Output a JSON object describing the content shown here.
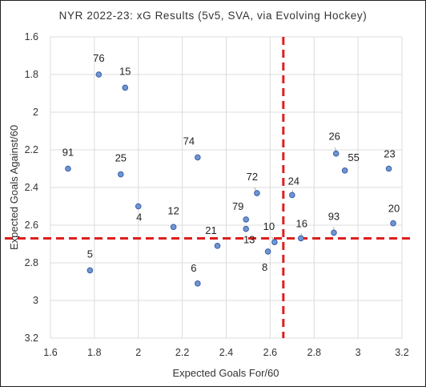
{
  "chart_data": {
    "type": "scatter",
    "title": "NYR 2022-23: xG Results (5v5, SVA, via Evolving Hockey)",
    "xlabel": "Expected Goals For/60",
    "ylabel": "Expected Goals Against/60",
    "xlim": [
      1.6,
      3.2
    ],
    "ylim": [
      1.6,
      3.2
    ],
    "y_inverted": true,
    "x_ticks": [
      "1.6",
      "1.8",
      "2",
      "2.2",
      "2.4",
      "2.6",
      "2.8",
      "3",
      "3.2"
    ],
    "y_ticks": [
      "1.6",
      "1.8",
      "2",
      "2.2",
      "2.4",
      "2.6",
      "2.8",
      "3",
      "3.2"
    ],
    "grid": true,
    "reference_lines": [
      {
        "axis": "x",
        "value": 2.66,
        "color": "#e01e1e",
        "style": "dashed"
      },
      {
        "axis": "y",
        "value": 2.67,
        "color": "#e01e1e",
        "style": "dashed"
      }
    ],
    "points": [
      {
        "label": "76",
        "x": 1.82,
        "y": 1.8
      },
      {
        "label": "15",
        "x": 1.94,
        "y": 1.87
      },
      {
        "label": "91",
        "x": 1.68,
        "y": 2.3
      },
      {
        "label": "25",
        "x": 1.92,
        "y": 2.33
      },
      {
        "label": "4",
        "x": 2.0,
        "y": 2.5
      },
      {
        "label": "74",
        "x": 2.27,
        "y": 2.24
      },
      {
        "label": "12",
        "x": 2.16,
        "y": 2.61
      },
      {
        "label": "5",
        "x": 1.78,
        "y": 2.84
      },
      {
        "label": "6",
        "x": 2.27,
        "y": 2.91
      },
      {
        "label": "21",
        "x": 2.36,
        "y": 2.71
      },
      {
        "label": "72",
        "x": 2.54,
        "y": 2.43
      },
      {
        "label": "79",
        "x": 2.49,
        "y": 2.57
      },
      {
        "label": "13",
        "x": 2.49,
        "y": 2.62
      },
      {
        "label": "10",
        "x": 2.62,
        "y": 2.69
      },
      {
        "label": "8",
        "x": 2.59,
        "y": 2.74
      },
      {
        "label": "24",
        "x": 2.7,
        "y": 2.44
      },
      {
        "label": "16",
        "x": 2.74,
        "y": 2.67
      },
      {
        "label": "26",
        "x": 2.9,
        "y": 2.22
      },
      {
        "label": "55",
        "x": 2.94,
        "y": 2.31
      },
      {
        "label": "93",
        "x": 2.89,
        "y": 2.64
      },
      {
        "label": "23",
        "x": 3.14,
        "y": 2.3
      },
      {
        "label": "20",
        "x": 3.16,
        "y": 2.59
      }
    ]
  },
  "colors": {
    "point_fill": "#6f95d2",
    "point_stroke": "#3a5fa8",
    "reference_line": "#e01e1e"
  }
}
